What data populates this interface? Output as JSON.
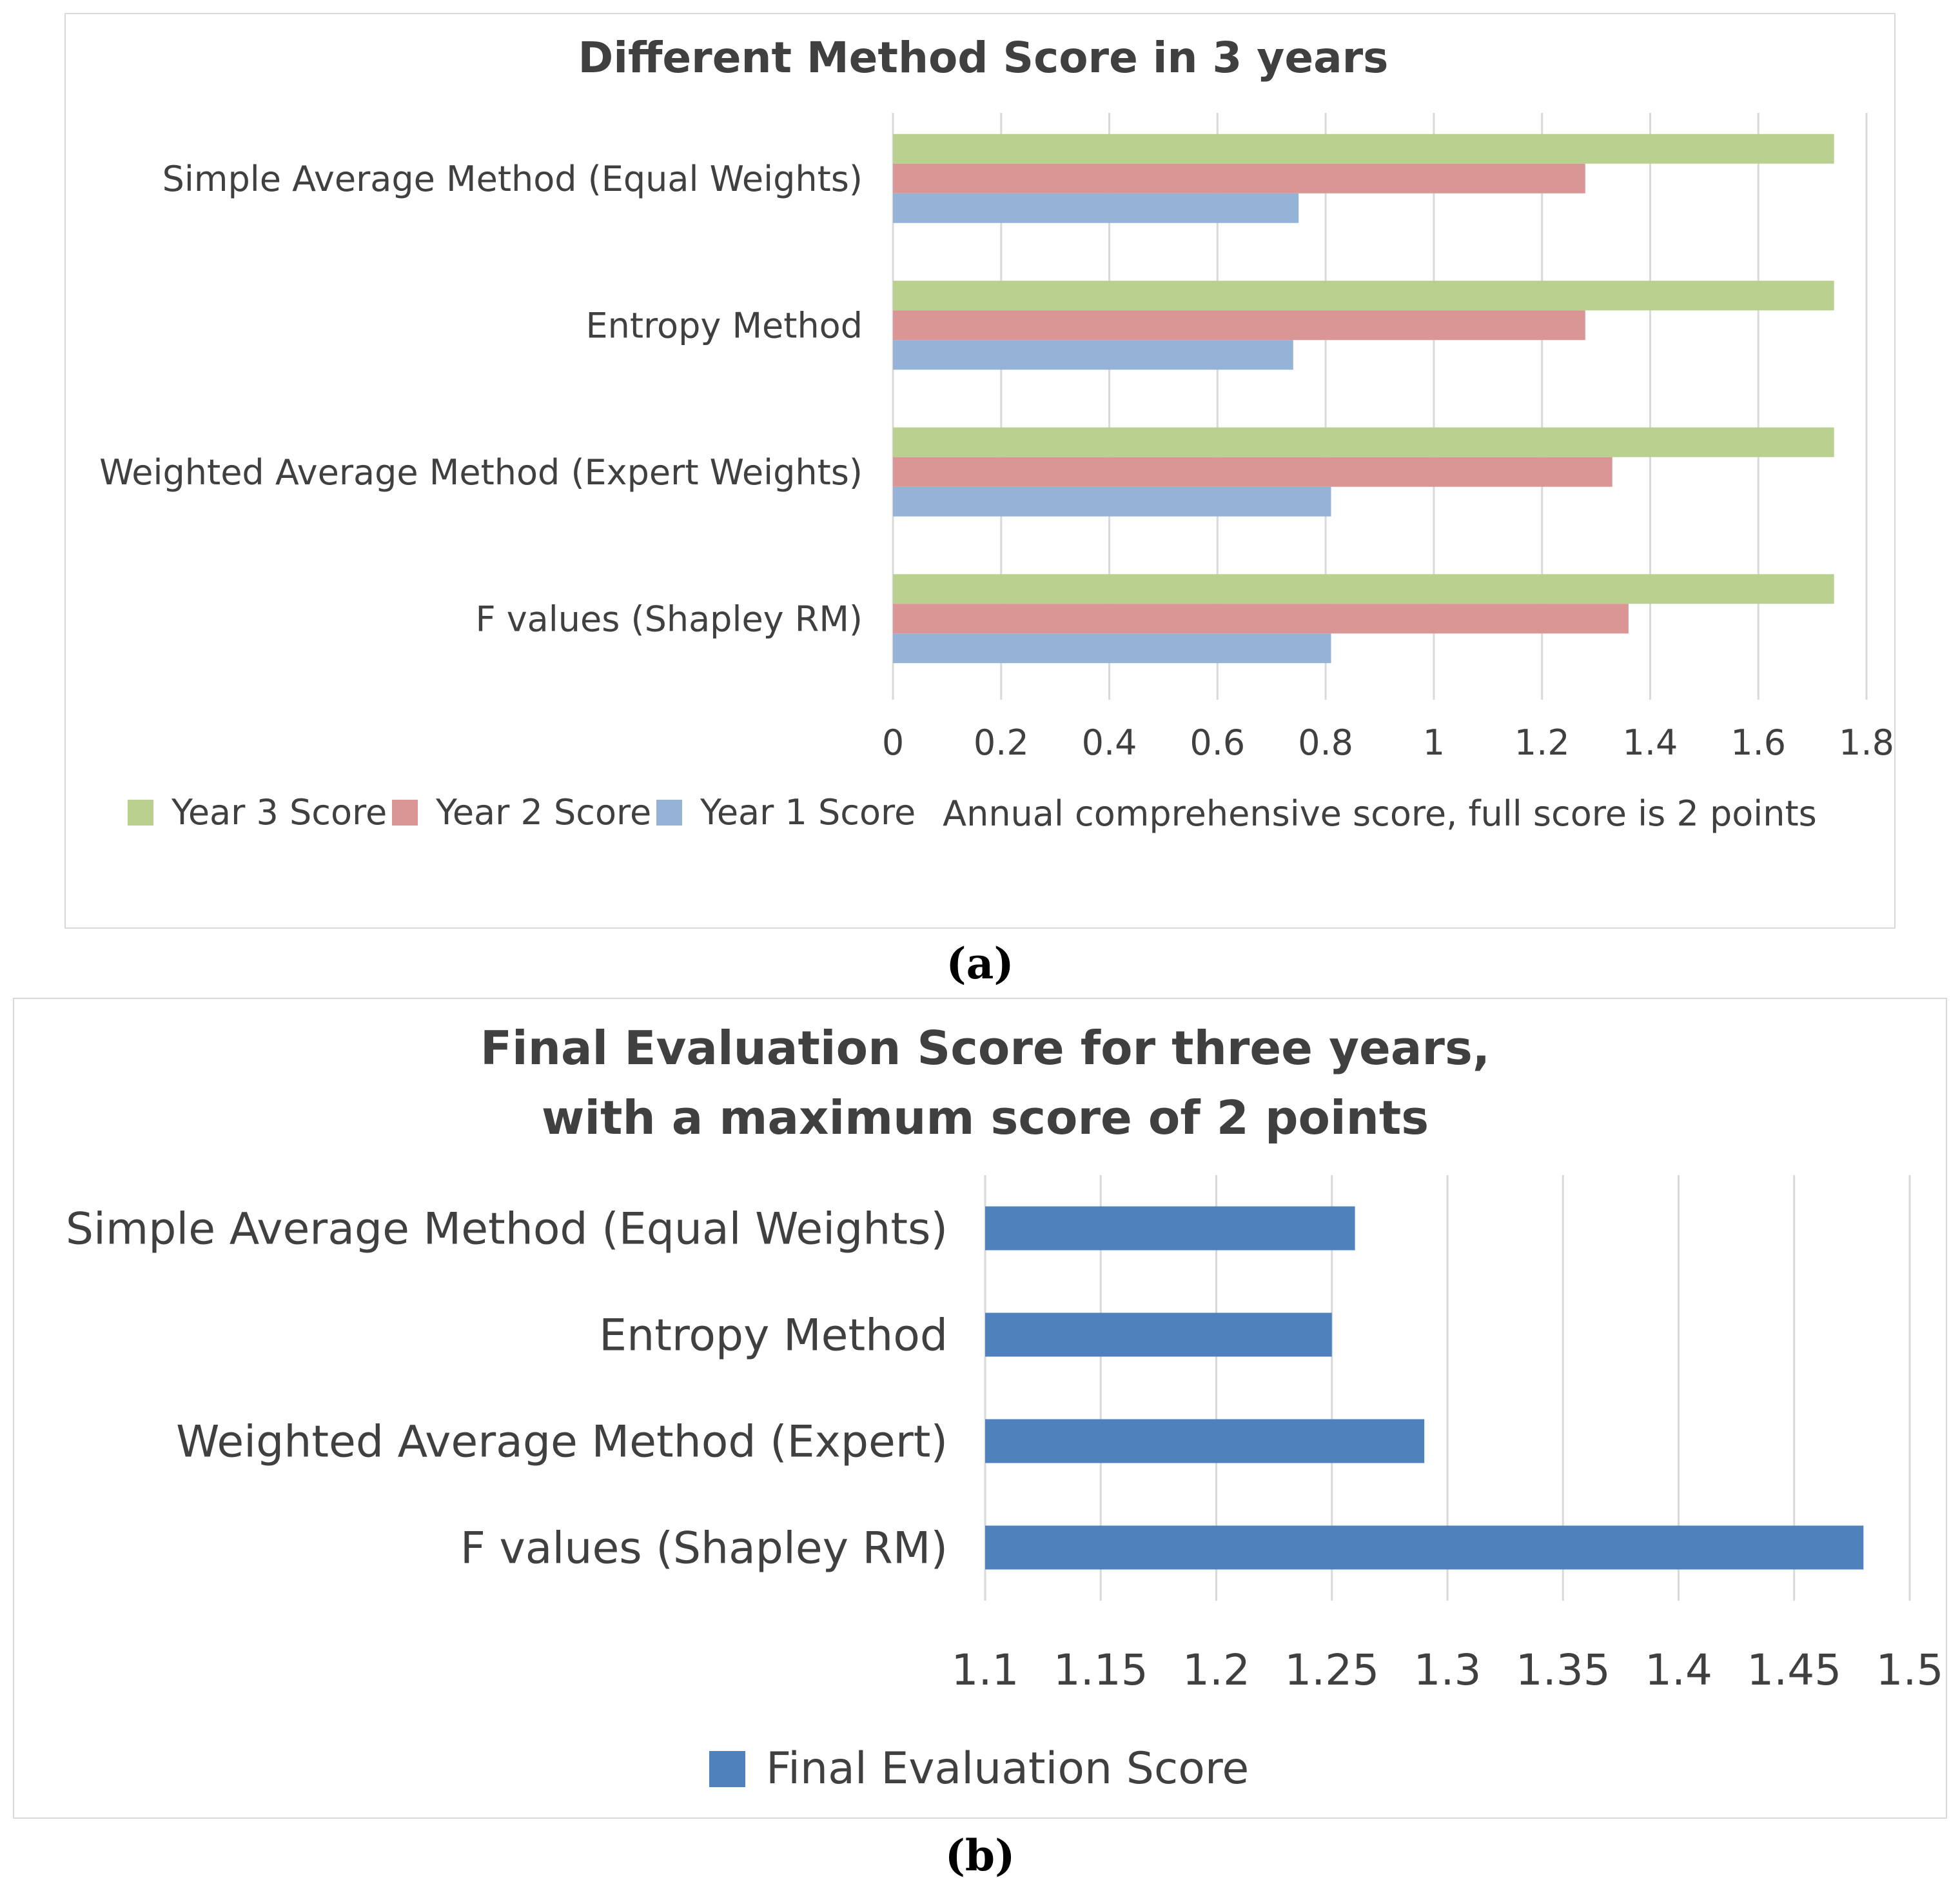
{
  "chart_data": [
    {
      "panel": "a",
      "type": "bar",
      "orientation": "horizontal",
      "title": "Different Method Score in 3  years",
      "categories": [
        "Simple Average Method (Equal Weights)",
        "Entropy Method",
        "Weighted Average Method (Expert Weights)",
        "F values (Shapley RM)"
      ],
      "series": [
        {
          "name": "Year 3 Score",
          "color": "#b9d08f",
          "values": [
            1.74,
            1.74,
            1.74,
            1.74
          ]
        },
        {
          "name": "Year 2 Score",
          "color": "#da9694",
          "values": [
            1.28,
            1.28,
            1.33,
            1.36
          ]
        },
        {
          "name": "Year 1 Score",
          "color": "#95b3d7",
          "values": [
            0.75,
            0.74,
            0.81,
            0.81
          ]
        }
      ],
      "xlim": [
        0,
        1.8
      ],
      "xticks": [
        "0",
        "0.2",
        "0.4",
        "0.6",
        "0.8",
        "1",
        "1.2",
        "1.4",
        "1.6",
        "1.8"
      ],
      "xlabel": "Annual comprehensive score, full score is 2 points",
      "ylabel": "",
      "grid": true,
      "legend_position": "bottom-left"
    },
    {
      "panel": "b",
      "type": "bar",
      "orientation": "horizontal",
      "title": "Final Evaluation Score for three years,\nwith a maximum score of 2 points",
      "title_lines": [
        "Final Evaluation Score for three years,",
        "with a maximum score of 2 points"
      ],
      "categories": [
        "Simple Average Method (Equal Weights)",
        "Entropy Method",
        "Weighted Average Method (Expert)",
        "F values (Shapley RM)"
      ],
      "series": [
        {
          "name": "Final Evaluation Score",
          "color": "#4f81bd",
          "values": [
            1.26,
            1.25,
            1.29,
            1.48
          ]
        }
      ],
      "xlim": [
        1.1,
        1.5
      ],
      "xticks": [
        "1.1",
        "1.15",
        "1.2",
        "1.25",
        "1.3",
        "1.35",
        "1.4",
        "1.45",
        "1.5"
      ],
      "xlabel": "",
      "ylabel": "",
      "grid": true,
      "legend_position": "bottom-center"
    }
  ],
  "captions": {
    "a": "(a)",
    "b": "(b)"
  }
}
